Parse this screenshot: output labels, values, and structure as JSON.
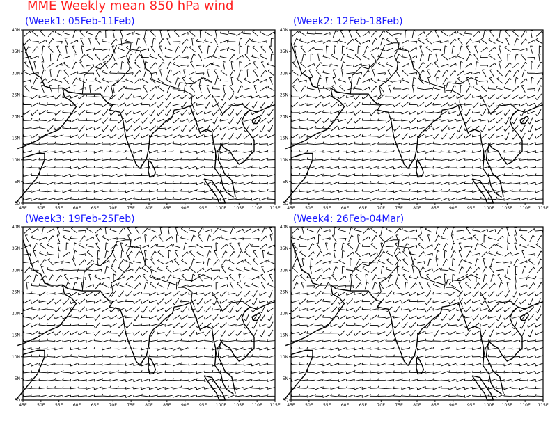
{
  "figure_title": "MME Weekly mean 850 hPa wind",
  "panels": [
    {
      "title": "(Week1: 05Feb-11Feb)",
      "seed": 11
    },
    {
      "title": "(Week2: 12Feb-18Feb)",
      "seed": 23
    },
    {
      "title": "(Week3: 19Feb-25Feb)",
      "seed": 37
    },
    {
      "title": "(Week4: 26Feb-04Mar)",
      "seed": 51
    }
  ],
  "map_extent": {
    "lon": [
      45,
      115
    ],
    "lat": [
      0,
      40
    ]
  },
  "lon_tick_labels": [
    "45E",
    "50E",
    "55E",
    "60E",
    "65E",
    "70E",
    "75E",
    "80E",
    "85E",
    "90E",
    "95E",
    "100E",
    "105E",
    "110E",
    "115E"
  ],
  "lat_tick_labels": [
    "EQ",
    "5N",
    "10N",
    "15N",
    "20N",
    "25N",
    "30N",
    "35N",
    "40N"
  ],
  "colors": {
    "title": "#ff2020",
    "panel_title": "#1a1aff",
    "lines": "#000000"
  }
}
